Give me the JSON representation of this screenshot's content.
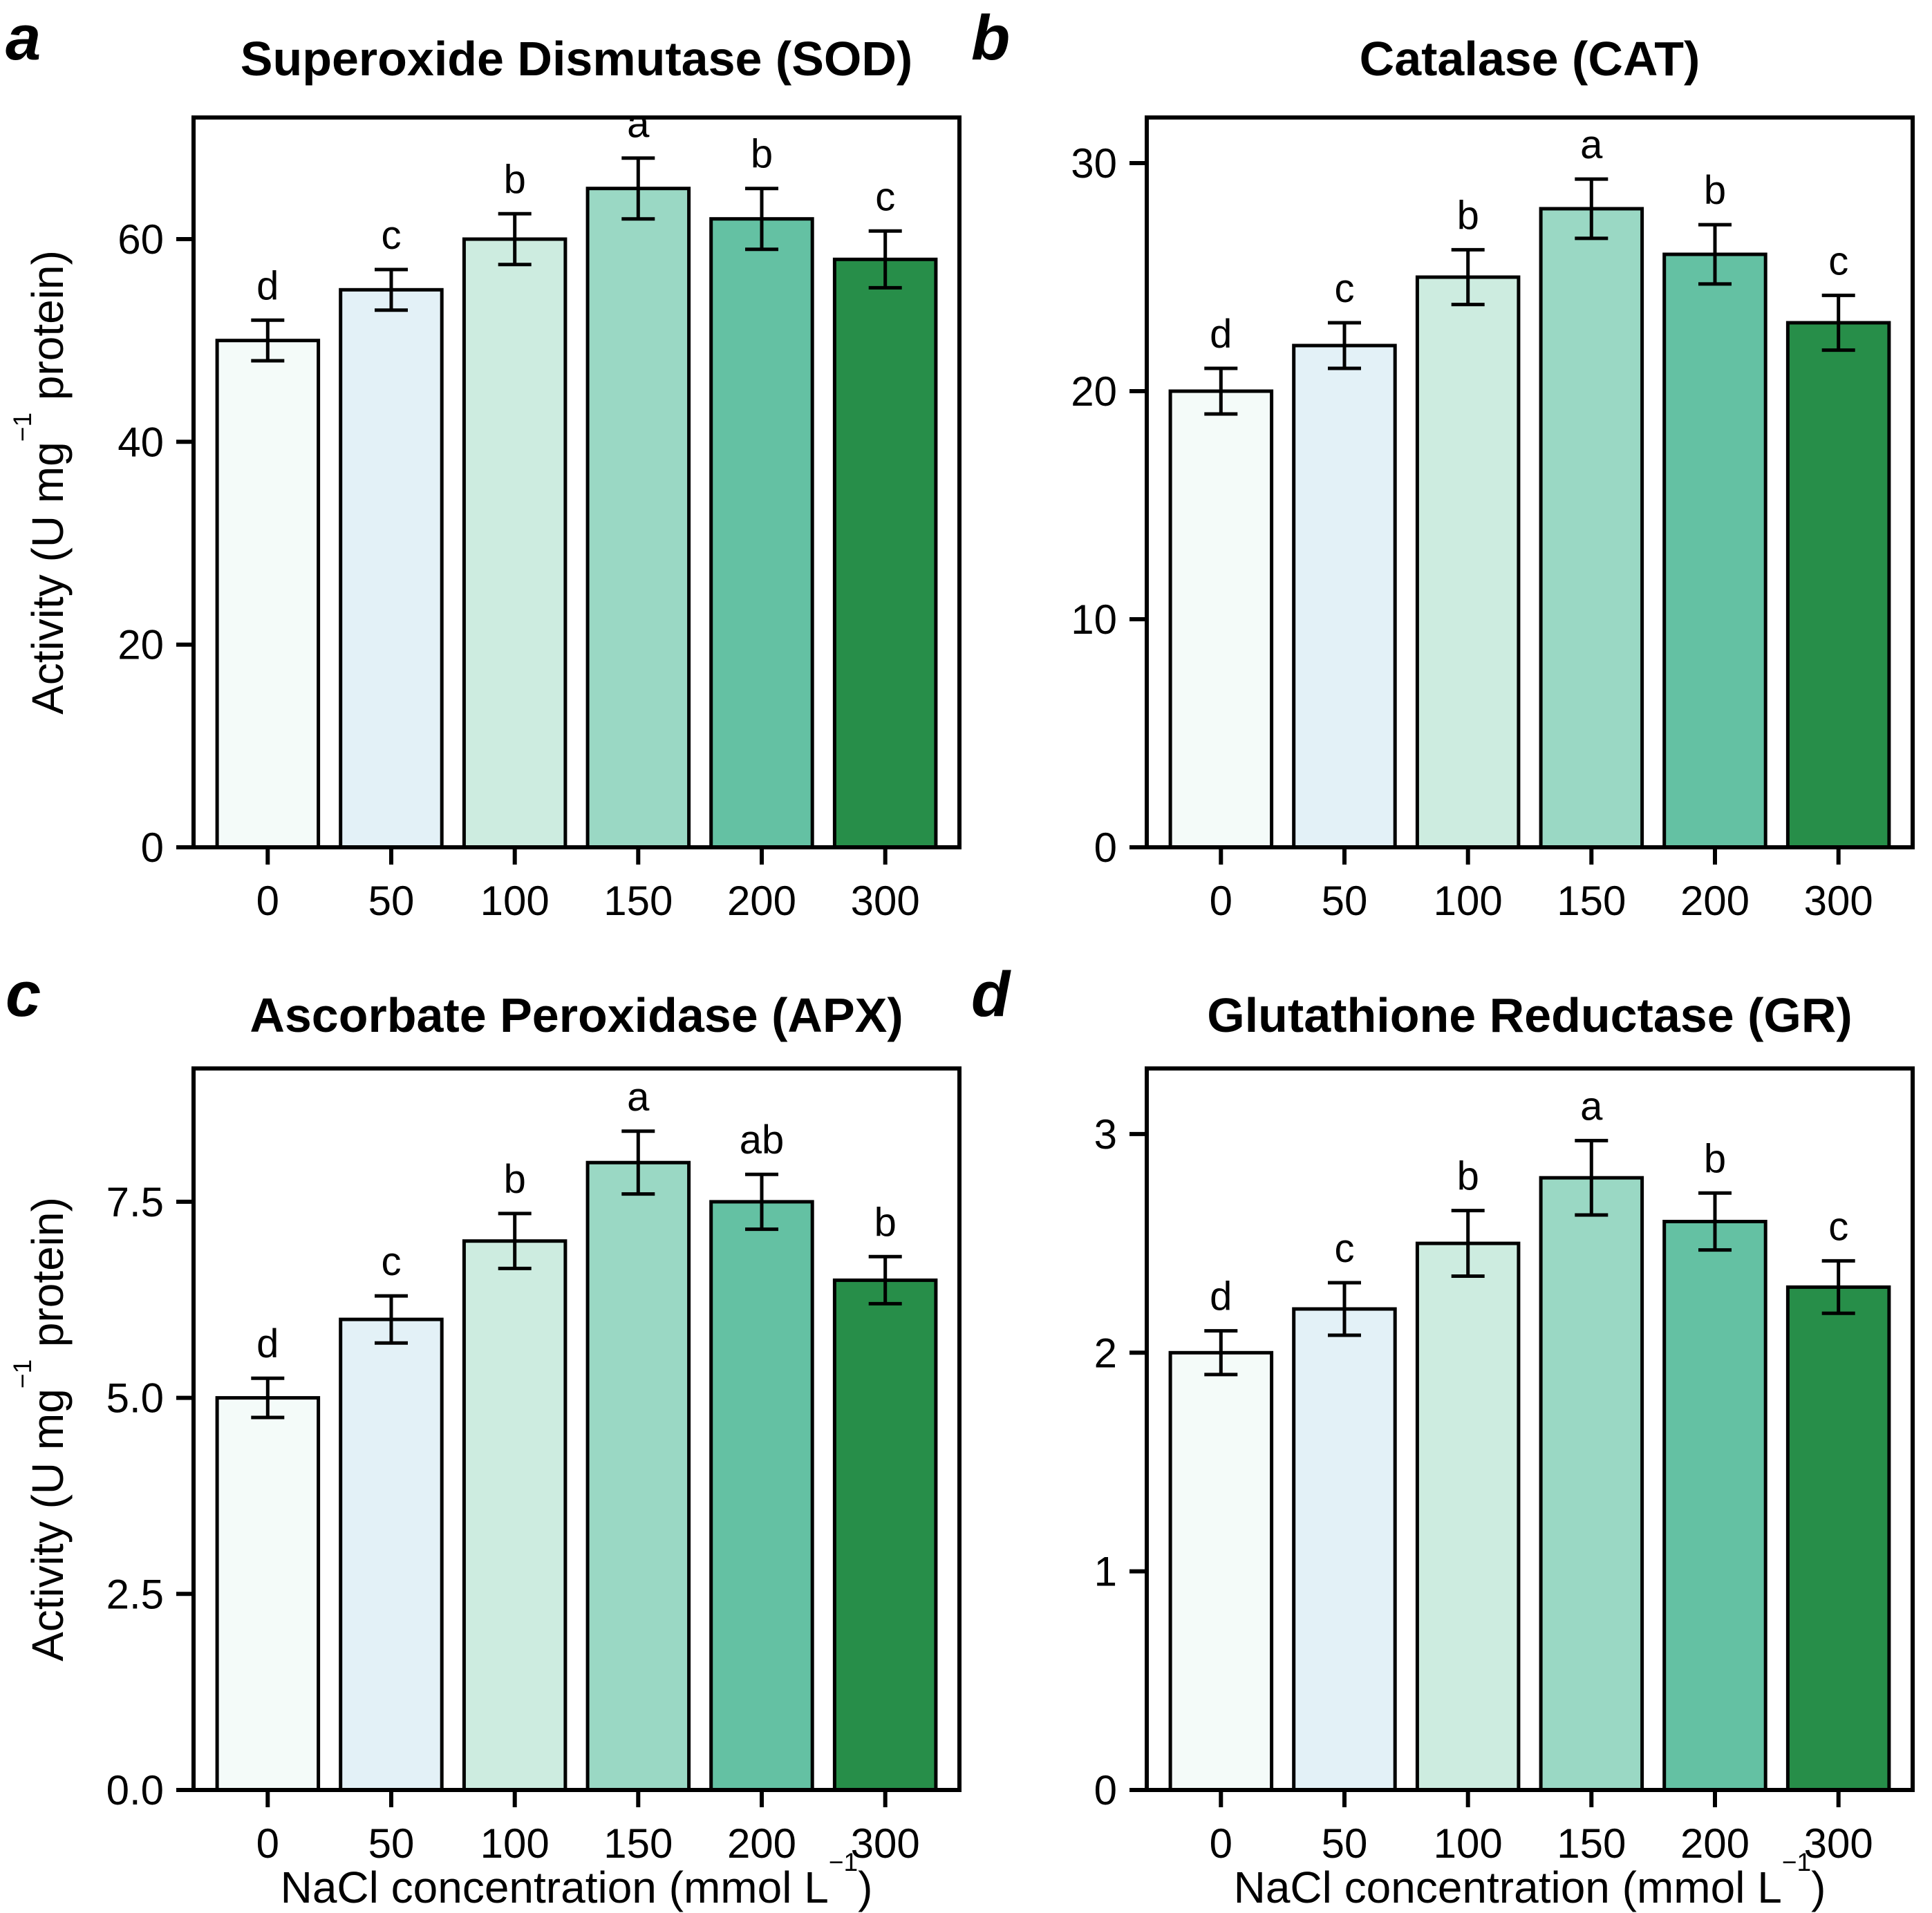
{
  "figure": {
    "background": "#ffffff",
    "text_color": "#000000",
    "bar_border_color": "#000000",
    "bar_colors": [
      "#f4fbf9",
      "#e3f1f7",
      "#cdece0",
      "#9ad8c4",
      "#64c1a3",
      "#278e49"
    ],
    "ylabel_parts": {
      "pre": "Activity (U mg",
      "sup": "−1",
      "post": " protein)"
    },
    "xlabel_parts": {
      "pre": "NaCl concentration (mmol L",
      "sup": "−1",
      "post": ")"
    },
    "panels": [
      {
        "letter": "a",
        "title": "Superoxide Dismutase (SOD)"
      },
      {
        "letter": "b",
        "title": "Catalase (CAT)"
      },
      {
        "letter": "c",
        "title": "Ascorbate Peroxidase (APX)"
      },
      {
        "letter": "d",
        "title": "Glutathione Reductase (GR)"
      }
    ]
  },
  "chart_data": [
    {
      "type": "bar",
      "panel": "a",
      "title": "Superoxide Dismutase (SOD)",
      "categories": [
        "0",
        "50",
        "100",
        "150",
        "200",
        "300"
      ],
      "values": [
        50,
        55,
        60,
        65,
        62,
        58
      ],
      "errors": [
        2,
        2,
        2.5,
        3,
        3,
        2.8
      ],
      "sig_letters": [
        "d",
        "c",
        "b",
        "a",
        "b",
        "c"
      ],
      "ylabel": "Activity (U mg⁻¹ protein)",
      "xlabel": "",
      "yticks": [
        0,
        20,
        40,
        60
      ],
      "ytick_labels": [
        "0",
        "20",
        "40",
        "60"
      ],
      "ylim": [
        0,
        72
      ],
      "grid": false,
      "legend": false
    },
    {
      "type": "bar",
      "panel": "b",
      "title": "Catalase (CAT)",
      "categories": [
        "0",
        "50",
        "100",
        "150",
        "200",
        "300"
      ],
      "values": [
        20,
        22,
        25,
        28,
        26,
        23
      ],
      "errors": [
        1,
        1,
        1.2,
        1.3,
        1.3,
        1.2
      ],
      "sig_letters": [
        "d",
        "c",
        "b",
        "a",
        "b",
        "c"
      ],
      "ylabel": "",
      "xlabel": "",
      "yticks": [
        0,
        10,
        20,
        30
      ],
      "ytick_labels": [
        "0",
        "10",
        "20",
        "30"
      ],
      "ylim": [
        0,
        32
      ],
      "grid": false,
      "legend": false
    },
    {
      "type": "bar",
      "panel": "c",
      "title": "Ascorbate Peroxidase (APX)",
      "categories": [
        "0",
        "50",
        "100",
        "150",
        "200",
        "300"
      ],
      "values": [
        5.0,
        6.0,
        7.0,
        8.0,
        7.5,
        6.5
      ],
      "errors": [
        0.25,
        0.3,
        0.35,
        0.4,
        0.35,
        0.3
      ],
      "sig_letters": [
        "d",
        "c",
        "b",
        "a",
        "ab",
        "b"
      ],
      "ylabel": "Activity (U mg⁻¹ protein)",
      "xlabel": "NaCl concentration (mmol L⁻¹)",
      "yticks": [
        0,
        2.5,
        5,
        7.5
      ],
      "ytick_labels": [
        "0.0",
        "2.5",
        "5.0",
        "7.5"
      ],
      "ylim": [
        0,
        9.2
      ],
      "grid": false,
      "legend": false
    },
    {
      "type": "bar",
      "panel": "d",
      "title": "Glutathione Reductase (GR)",
      "categories": [
        "0",
        "50",
        "100",
        "150",
        "200",
        "300"
      ],
      "values": [
        2.0,
        2.2,
        2.5,
        2.8,
        2.6,
        2.3
      ],
      "errors": [
        0.1,
        0.12,
        0.15,
        0.17,
        0.13,
        0.12
      ],
      "sig_letters": [
        "d",
        "c",
        "b",
        "a",
        "b",
        "c"
      ],
      "ylabel": "",
      "xlabel": "NaCl concentration (mmol L⁻¹)",
      "yticks": [
        0,
        1,
        2,
        3
      ],
      "ytick_labels": [
        "0",
        "1",
        "2",
        "3"
      ],
      "ylim": [
        0,
        3.3
      ],
      "grid": false,
      "legend": false
    }
  ]
}
